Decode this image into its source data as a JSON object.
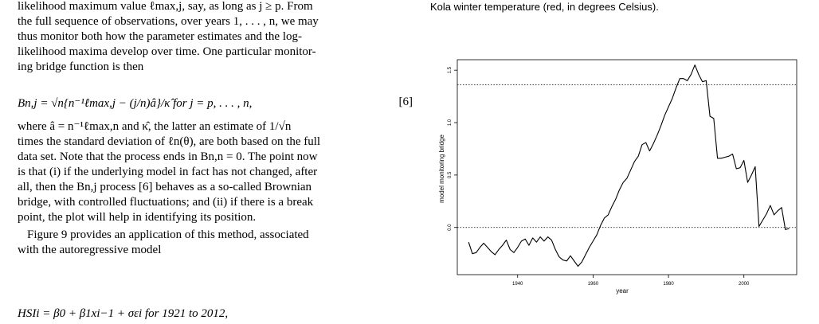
{
  "left": {
    "para1": [
      "likelihood maximum value ℓmax,j, say, as long as j ≥ p. From",
      "the full sequence of observations, over years 1, . . . , n, we may",
      "thus monitor both how the parameter estimates and the log-",
      "likelihood maxima develop over time. One particular monitor-",
      "ing bridge function is then"
    ],
    "equation6": "Bn,j = √n{n⁻¹ℓmax,j − (j/n)â}/κ̂   for j = p, . . . , n,",
    "equation6_number": "[6]",
    "para2": [
      "where â = n⁻¹ℓmax,n and κ̂, the latter an estimate of 1/√n",
      "times the standard deviation of ℓn(θ), are both based on the full",
      "data set. Note that the process ends in Bn,n = 0. The point now",
      "is that (i) if the underlying model in fact has not changed, after",
      "all, then the Bn,j process [6] behaves as a so-called Brownian",
      "bridge, with controlled fluctuations; and (ii) if there is a break",
      "point, the plot will help in identifying its position."
    ],
    "para3": [
      "Figure 9 provides an application of this method, associated",
      "with the autoregressive model"
    ],
    "equation_hsi": "HSIi = β0 + β1xi−1 + σεi   for 1921 to 2012,"
  },
  "right": {
    "caption": "Kola winter temperature (red, in degrees Celsius)."
  },
  "chart_data": {
    "type": "line",
    "xlabel": "year",
    "ylabel": "model monitoring bridge",
    "xlim": [
      1924,
      2014
    ],
    "ylim": [
      -0.45,
      1.6
    ],
    "xticks": [
      1940,
      1960,
      1980,
      2000
    ],
    "yticks": [
      0.0,
      0.5,
      1.0,
      1.5
    ],
    "hlines": [
      0.0,
      1.36
    ],
    "grid": false,
    "series": [
      {
        "x": [
          1927,
          1928,
          1929,
          1930,
          1931,
          1932,
          1933,
          1934,
          1935,
          1936,
          1937,
          1938,
          1939,
          1940,
          1941,
          1942,
          1943,
          1944,
          1945,
          1946,
          1947,
          1948,
          1949,
          1950,
          1951,
          1952,
          1953,
          1954,
          1955,
          1956,
          1957,
          1958,
          1959,
          1960,
          1961,
          1962,
          1963,
          1964,
          1965,
          1966,
          1967,
          1968,
          1969,
          1970,
          1971,
          1972,
          1973,
          1974,
          1975,
          1976,
          1977,
          1978,
          1979,
          1980,
          1981,
          1982,
          1983,
          1984,
          1985,
          1986,
          1987,
          1988,
          1989,
          1990,
          1991,
          1992,
          1993,
          1994,
          1995,
          1996,
          1997,
          1998,
          1999,
          2000,
          2001,
          2002,
          2003,
          2004,
          2005,
          2006,
          2007,
          2008,
          2009,
          2010,
          2011,
          2012
        ],
        "y": [
          -0.14,
          -0.25,
          -0.24,
          -0.19,
          -0.15,
          -0.19,
          -0.23,
          -0.26,
          -0.21,
          -0.17,
          -0.12,
          -0.21,
          -0.24,
          -0.19,
          -0.13,
          -0.11,
          -0.17,
          -0.1,
          -0.14,
          -0.09,
          -0.13,
          -0.09,
          -0.12,
          -0.21,
          -0.28,
          -0.31,
          -0.32,
          -0.27,
          -0.32,
          -0.37,
          -0.33,
          -0.26,
          -0.19,
          -0.13,
          -0.07,
          0.02,
          0.09,
          0.12,
          0.2,
          0.27,
          0.36,
          0.43,
          0.47,
          0.55,
          0.63,
          0.68,
          0.79,
          0.81,
          0.73,
          0.8,
          0.88,
          0.97,
          1.07,
          1.15,
          1.23,
          1.33,
          1.42,
          1.42,
          1.4,
          1.46,
          1.55,
          1.46,
          1.39,
          1.4,
          1.06,
          1.04,
          0.66,
          0.66,
          0.67,
          0.68,
          0.7,
          0.56,
          0.57,
          0.64,
          0.43,
          0.5,
          0.58,
          0.01,
          0.07,
          0.13,
          0.21,
          0.12,
          0.16,
          0.19,
          -0.02,
          -0.01
        ]
      }
    ]
  }
}
